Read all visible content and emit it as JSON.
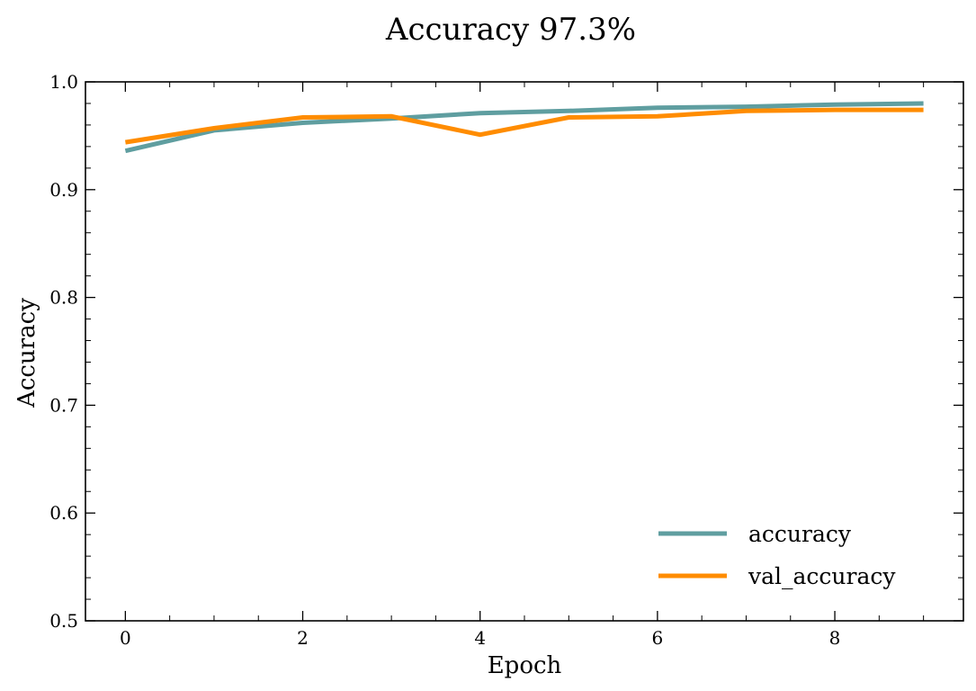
{
  "chart_data": {
    "type": "line",
    "title": "Accuracy 97.3%",
    "xlabel": "Epoch",
    "ylabel": "Accuracy",
    "xlim": [
      -0.45,
      9.45
    ],
    "ylim": [
      0.5,
      1.0
    ],
    "xticks": [
      0,
      2,
      4,
      6,
      8
    ],
    "xtick_labels": [
      "0",
      "2",
      "4",
      "6",
      "8"
    ],
    "yticks": [
      0.5,
      0.6,
      0.7,
      0.8,
      0.9,
      1.0
    ],
    "ytick_labels": [
      "0.5",
      "0.6",
      "0.7",
      "0.8",
      "0.9",
      "1.0"
    ],
    "grid": false,
    "legend_position": "bottom-right",
    "x": [
      0,
      1,
      2,
      3,
      4,
      5,
      6,
      7,
      8,
      9
    ],
    "series": [
      {
        "name": "accuracy",
        "color": "#5f9ea0",
        "values": [
          0.936,
          0.955,
          0.962,
          0.966,
          0.971,
          0.973,
          0.976,
          0.977,
          0.979,
          0.98
        ]
      },
      {
        "name": "val_accuracy",
        "color": "#ff8c00",
        "values": [
          0.944,
          0.957,
          0.967,
          0.968,
          0.951,
          0.967,
          0.968,
          0.973,
          0.974,
          0.974
        ]
      }
    ]
  }
}
